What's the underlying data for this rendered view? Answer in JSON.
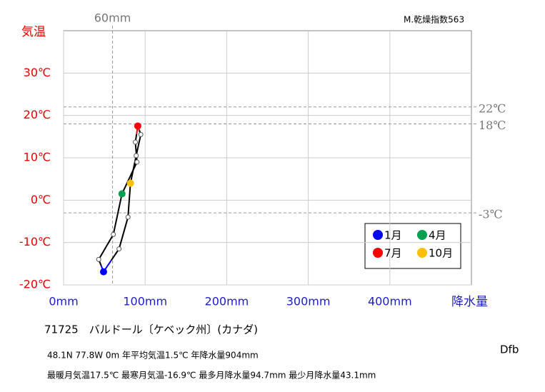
{
  "chart_data": {
    "type": "climograph",
    "y_label": "気温",
    "x_label": "降水量",
    "index_label": "M.乾燥指数563",
    "station": "71725　バルドール〔ケベック州〕(カナダ)",
    "climate": "Dfb",
    "info": [
      "48.1N  77.8W 0m  年平均気温1.5℃ 年降水量904mm",
      "最暖月気温17.5℃ 最寒月気温-16.9℃ 最多月降水量94.7mm 最少月降水量43.1mm"
    ],
    "categories": [
      "1月",
      null,
      null,
      "4月",
      null,
      null,
      "7月",
      null,
      null,
      "10月",
      null,
      null
    ],
    "x": [
      49,
      43.1,
      61,
      71.6,
      90,
      88,
      91,
      94.7,
      89,
      82,
      79,
      68
    ],
    "values": [
      -16.9,
      -14,
      -8.1,
      1.5,
      9,
      13.7,
      17.5,
      15.5,
      10.5,
      4,
      -4,
      -11.5
    ],
    "colors": [
      "#0000ff",
      "#ffffff",
      "#ffffff",
      "#00a050",
      "#ffffff",
      "#ffffff",
      "#ff0000",
      "#ffffff",
      "#ffffff",
      "#ffc000",
      "#ffffff",
      "#ffffff"
    ],
    "xlim": [
      0,
      500
    ],
    "ylim": [
      -20,
      40
    ],
    "xticks": [
      {
        "value": 0,
        "label": "0mm"
      },
      {
        "value": 100,
        "label": "100mm"
      },
      {
        "value": 200,
        "label": "200mm"
      },
      {
        "value": 300,
        "label": "300mm"
      },
      {
        "value": 400,
        "label": "400mm"
      }
    ],
    "yticks": [
      {
        "value": -20,
        "label": "-20℃"
      },
      {
        "value": -10,
        "label": "-10℃"
      },
      {
        "value": 0,
        "label": "0℃"
      },
      {
        "value": 10,
        "label": "10℃"
      },
      {
        "value": 20,
        "label": "20℃"
      },
      {
        "value": 30,
        "label": "30℃"
      }
    ],
    "ref_x": [
      {
        "value": 60,
        "label": "60mm"
      }
    ],
    "ref_y": [
      {
        "value": 22,
        "label": "22℃"
      },
      {
        "value": 18,
        "label": "18℃"
      },
      {
        "value": -3,
        "label": "-3℃"
      }
    ],
    "grid": true
  }
}
